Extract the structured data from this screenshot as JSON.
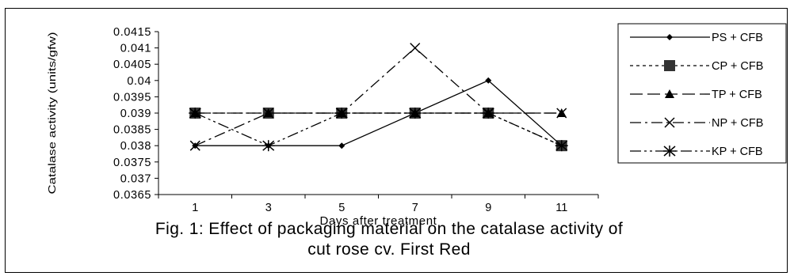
{
  "caption": {
    "line1": "Fig. 1: Effect of packaging material on the catalase activity of",
    "line2": "cut rose cv. First Red"
  },
  "chart_data": {
    "type": "line",
    "title": "",
    "xlabel": "Days after treatment",
    "ylabel": "Catalase activity (units/gfw)",
    "categories": [
      "1",
      "3",
      "5",
      "7",
      "9",
      "11"
    ],
    "x": [
      1,
      3,
      5,
      7,
      9,
      11
    ],
    "ylim": [
      0.0365,
      0.0415
    ],
    "yticks": [
      "0.0365",
      "0.037",
      "0.0375",
      "0.038",
      "0.0385",
      "0.039",
      "0.0395",
      "0.04",
      "0.0405",
      "0.041",
      "0.0415"
    ],
    "grid": false,
    "legend_position": "right",
    "series": [
      {
        "name": "PS + CFB",
        "values": [
          0.038,
          0.038,
          0.038,
          0.039,
          0.04,
          0.038
        ],
        "marker": "diamond",
        "dash": "solid"
      },
      {
        "name": "CP + CFB",
        "values": [
          0.039,
          0.039,
          0.039,
          0.039,
          0.039,
          0.038
        ],
        "marker": "square",
        "dash": "dotted"
      },
      {
        "name": "TP + CFB",
        "values": [
          0.039,
          0.039,
          0.039,
          0.039,
          0.039,
          0.039
        ],
        "marker": "triangle",
        "dash": "longdash"
      },
      {
        "name": "NP + CFB",
        "values": [
          0.038,
          0.039,
          0.039,
          0.041,
          0.039,
          0.039
        ],
        "marker": "x",
        "dash": "dashdot"
      },
      {
        "name": "KP + CFB",
        "values": [
          0.039,
          0.038,
          0.039,
          0.039,
          0.039,
          0.038
        ],
        "marker": "asterisk",
        "dash": "dashdotdot"
      }
    ]
  }
}
